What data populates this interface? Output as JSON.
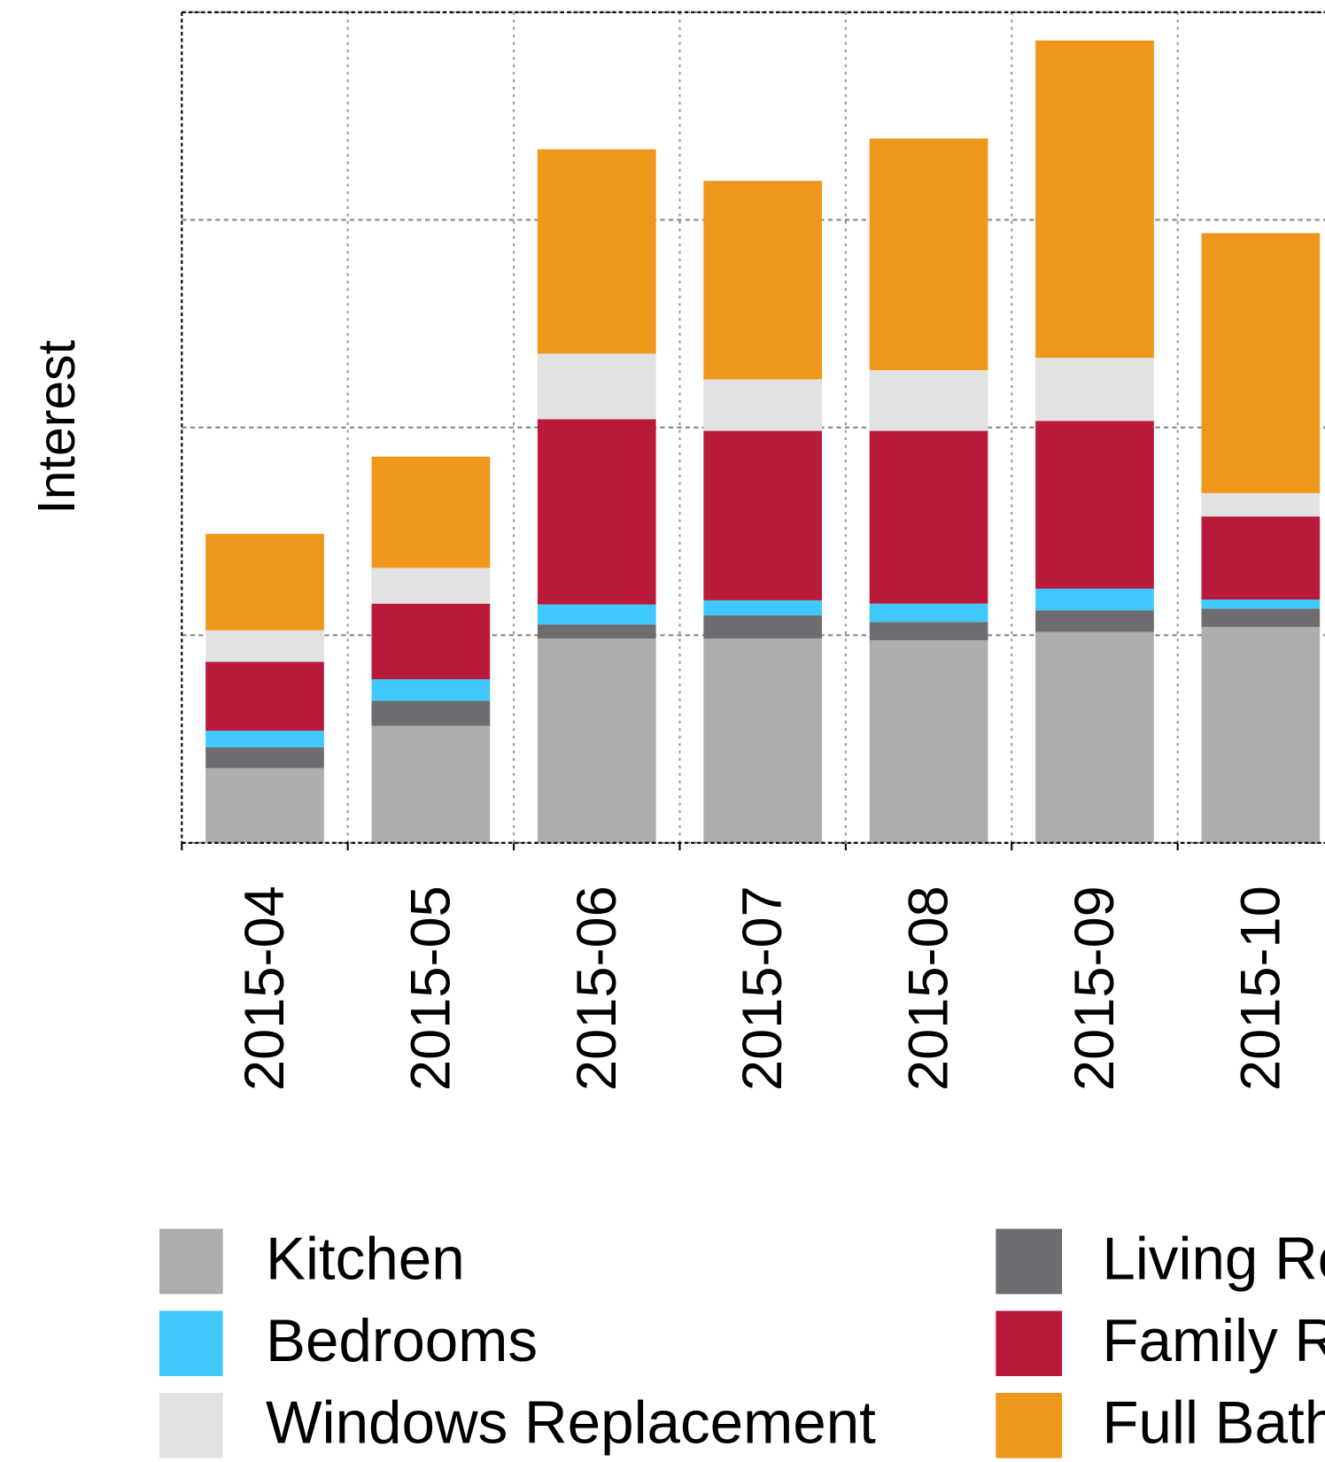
{
  "chart_data": {
    "type": "stacked_bar",
    "y_label": "Interest",
    "categories": [
      "2015-04",
      "2015-05",
      "2015-06",
      "2015-07",
      "2015-08",
      "2015-09",
      "2015-10"
    ],
    "series": [
      {
        "name": "Kitchen",
        "color": "#acadac",
        "values": [
          9.0,
          14.1,
          24.6,
          24.6,
          24.4,
          25.4,
          26.0
        ]
      },
      {
        "name": "Living Room",
        "color": "#6d6c70",
        "values": [
          2.5,
          3.0,
          1.7,
          2.8,
          2.2,
          2.6,
          2.2
        ]
      },
      {
        "name": "Bedrooms",
        "color": "#3fc8fb",
        "values": [
          2.0,
          2.6,
          2.4,
          1.8,
          2.2,
          2.6,
          1.1
        ]
      },
      {
        "name": "Family Room",
        "color": "#b91a3c",
        "values": [
          8.3,
          9.1,
          22.3,
          20.4,
          20.8,
          20.2,
          10.0
        ]
      },
      {
        "name": "Windows Replacement",
        "color": "#e2e2e2",
        "values": [
          3.8,
          4.3,
          7.9,
          6.2,
          7.3,
          7.6,
          2.8
        ]
      },
      {
        "name": "Full Bathroom",
        "color": "#ef971b",
        "values": [
          11.6,
          13.4,
          24.6,
          23.9,
          27.9,
          38.2,
          31.3
        ]
      }
    ],
    "ylim": [
      0,
      100
    ],
    "yticks": [
      0,
      25,
      50,
      75,
      100
    ],
    "grid": true
  }
}
